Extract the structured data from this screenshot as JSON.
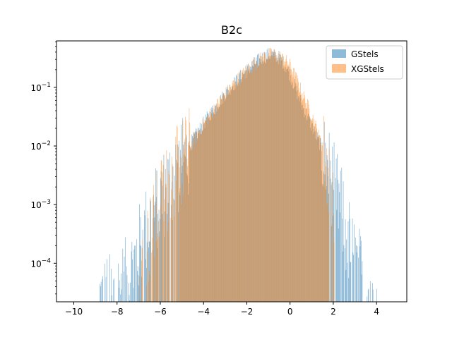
{
  "chart_data": {
    "type": "histogram",
    "title": "B2c",
    "xlabel": "",
    "ylabel": "",
    "yscale": "log",
    "xlim": [
      -10.8,
      5.4
    ],
    "ylim": [
      2.2e-05,
      0.62
    ],
    "xticks": [
      -10,
      -8,
      -6,
      -4,
      -2,
      0,
      2,
      4
    ],
    "xtick_labels": [
      "−10",
      "−8",
      "−6",
      "−4",
      "−2",
      "0",
      "2",
      "4"
    ],
    "yticks": [
      0.0001,
      0.001,
      0.01,
      0.1
    ],
    "ytick_labels": [
      {
        "base": "10",
        "exp": "−4"
      },
      {
        "base": "10",
        "exp": "−3"
      },
      {
        "base": "10",
        "exp": "−2"
      },
      {
        "base": "10",
        "exp": "−1"
      }
    ],
    "legend": {
      "location": "top-right"
    },
    "grid": false,
    "series": [
      {
        "name": "GStels",
        "color": "#1f77b4",
        "alpha": 0.5,
        "profile": [
          [
            -8.8,
            3e-05
          ],
          [
            -8.2,
            3e-05
          ],
          [
            -7.5,
            6e-05
          ],
          [
            -7.0,
            0.0002
          ],
          [
            -6.5,
            0.0006
          ],
          [
            -6.0,
            0.0015
          ],
          [
            -5.5,
            0.003
          ],
          [
            -5.0,
            0.006
          ],
          [
            -4.5,
            0.013
          ],
          [
            -4.0,
            0.025
          ],
          [
            -3.5,
            0.045
          ],
          [
            -3.0,
            0.08
          ],
          [
            -2.5,
            0.13
          ],
          [
            -2.0,
            0.2
          ],
          [
            -1.5,
            0.29
          ],
          [
            -1.2,
            0.34
          ],
          [
            -1.0,
            0.37
          ],
          [
            -0.8,
            0.37
          ],
          [
            -0.5,
            0.33
          ],
          [
            -0.2,
            0.24
          ],
          [
            0.0,
            0.17
          ],
          [
            0.3,
            0.09
          ],
          [
            0.6,
            0.047
          ],
          [
            1.0,
            0.023
          ],
          [
            1.5,
            0.009
          ],
          [
            2.0,
            0.0025
          ],
          [
            2.3,
            0.0012
          ],
          [
            2.6,
            0.0004
          ],
          [
            3.0,
            0.00012
          ],
          [
            3.5,
            5e-05
          ],
          [
            4.1,
            3e-05
          ]
        ]
      },
      {
        "name": "XGStels",
        "color": "#ff7f0e",
        "alpha": 0.5,
        "profile": [
          [
            -7.0,
            6e-05
          ],
          [
            -6.7,
            0.0002
          ],
          [
            -6.3,
            0.0005
          ],
          [
            -6.0,
            0.0013
          ],
          [
            -5.5,
            0.003
          ],
          [
            -5.0,
            0.006
          ],
          [
            -4.5,
            0.012
          ],
          [
            -4.0,
            0.024
          ],
          [
            -3.5,
            0.044
          ],
          [
            -3.0,
            0.078
          ],
          [
            -2.5,
            0.13
          ],
          [
            -2.0,
            0.2
          ],
          [
            -1.5,
            0.29
          ],
          [
            -1.2,
            0.34
          ],
          [
            -1.0,
            0.37
          ],
          [
            -0.8,
            0.37
          ],
          [
            -0.5,
            0.34
          ],
          [
            -0.2,
            0.29
          ],
          [
            0.0,
            0.24
          ],
          [
            0.3,
            0.14
          ],
          [
            0.6,
            0.075
          ],
          [
            1.0,
            0.035
          ],
          [
            1.5,
            0.01
          ],
          [
            1.8,
            0.004
          ],
          [
            2.0,
            0.0008
          ],
          [
            2.05,
            4e-05
          ]
        ]
      }
    ]
  }
}
